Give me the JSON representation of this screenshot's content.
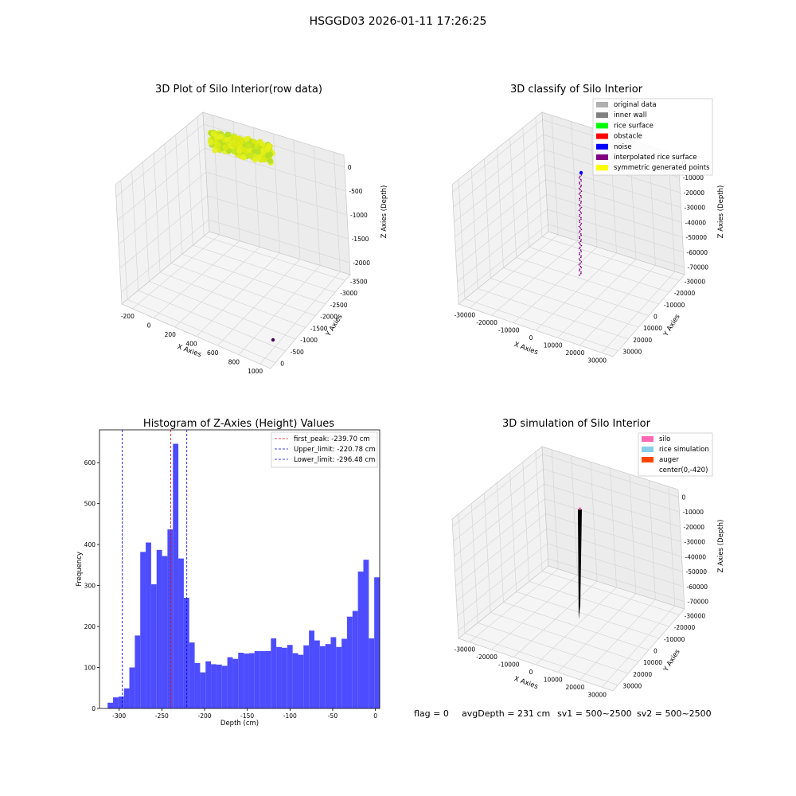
{
  "figure_title": "HSGGD03 2026-01-11 17:26:25",
  "chart_data": [
    {
      "id": "raw",
      "type": "scatter3d",
      "title": "3D Plot of Silo Interior(row data)",
      "xlabel": "X Axies",
      "ylabel": "Y Axies",
      "zlabel": "Z Axies (Depth)",
      "x_ticks": [
        "-200",
        "0",
        "200",
        "400",
        "600",
        "800",
        "1000"
      ],
      "y_ticks": [
        "0",
        "-500",
        "-1000",
        "-1500",
        "-2000",
        "-2500",
        "-3000",
        "-3500"
      ],
      "z_ticks": [
        "0",
        "-500",
        "-1000",
        "-1500",
        "-2000"
      ],
      "point_colors": [
        "#e6ef1c",
        "#c9e51e",
        "#b5df24",
        "#dcea10"
      ],
      "outlier_color": "#440154"
    },
    {
      "id": "classify",
      "type": "scatter3d",
      "title": "3D classify of Silo Interior",
      "xlabel": "X Axies",
      "ylabel": "Y Axies",
      "zlabel": "Z Axies (Depth)",
      "x_ticks": [
        "-30000",
        "-20000",
        "-10000",
        "0",
        "10000",
        "20000",
        "30000"
      ],
      "y_ticks": [
        "30000",
        "20000",
        "10000",
        "0",
        "-10000",
        "-20000",
        "-30000"
      ],
      "z_ticks": [
        "0",
        "-10000",
        "-20000",
        "-30000",
        "-40000",
        "-50000",
        "-60000",
        "-70000"
      ],
      "legend": [
        {
          "label": "original data",
          "color": "#b0b0b0"
        },
        {
          "label": "inner wall",
          "color": "#808080"
        },
        {
          "label": "rice surface",
          "color": "#00ff00"
        },
        {
          "label": "obstacle",
          "color": "#ff0000"
        },
        {
          "label": "noise",
          "color": "#0000ff"
        },
        {
          "label": "interpolated rice surface",
          "color": "#800080"
        },
        {
          "label": "symmetric generated points",
          "color": "#ffff00"
        }
      ]
    },
    {
      "id": "histogram",
      "type": "bar",
      "title": "Histogram of Z-Axies (Height) Values",
      "xlabel": "Depth (cm)",
      "ylabel": "Frequency",
      "xlim": [
        -323,
        5
      ],
      "ylim": [
        0,
        680
      ],
      "x_ticks": [
        -300,
        -250,
        -200,
        -150,
        -100,
        -50,
        0
      ],
      "y_ticks": [
        0,
        100,
        200,
        300,
        400,
        500,
        600
      ],
      "bin_start": -313.5,
      "bin_width": 6.37,
      "values": [
        14,
        27,
        29,
        49,
        100,
        178,
        382,
        405,
        303,
        387,
        372,
        437,
        646,
        366,
        270,
        161,
        111,
        88,
        115,
        108,
        107,
        104,
        125,
        121,
        136,
        134,
        135,
        140,
        140,
        140,
        171,
        150,
        148,
        155,
        135,
        131,
        154,
        190,
        166,
        152,
        157,
        174,
        150,
        170,
        224,
        238,
        334,
        363,
        171,
        320
      ],
      "bar_color": "#4d4dff",
      "lines": [
        {
          "label": "first_peak: -239.70 cm",
          "x": -239.7,
          "color": "#ff0000"
        },
        {
          "label": "Upper_limit: -220.78 cm",
          "x": -220.78,
          "color": "#0000ff"
        },
        {
          "label": "Lower_limit: -296.48 cm",
          "x": -296.48,
          "color": "#0000ff"
        }
      ]
    },
    {
      "id": "simulation",
      "type": "surface3d",
      "title": "3D simulation of Silo Interior",
      "xlabel": "X Axies",
      "ylabel": "Y Axies",
      "zlabel": "Z Axies (Depth)",
      "x_ticks": [
        "-30000",
        "-20000",
        "-10000",
        "0",
        "10000",
        "20000",
        "30000"
      ],
      "y_ticks": [
        "30000",
        "20000",
        "10000",
        "0",
        "-10000",
        "-20000",
        "-30000"
      ],
      "z_ticks": [
        "0",
        "-10000",
        "-20000",
        "-30000",
        "-40000",
        "-50000",
        "-60000",
        "-70000"
      ],
      "legend": [
        {
          "label": "silo",
          "color": "#ff69b4"
        },
        {
          "label": "rice simulation",
          "color": "#87ceeb"
        },
        {
          "label": "auger",
          "color": "#ff4500"
        },
        {
          "label": "center(0,-420)",
          "color": "#ffffff"
        }
      ]
    }
  ],
  "footer": {
    "flag": "flag = 0",
    "avg_depth": "avgDepth = 231 cm",
    "sv1": "sv1 = 500~2500",
    "sv2": "sv2 = 500~2500"
  }
}
